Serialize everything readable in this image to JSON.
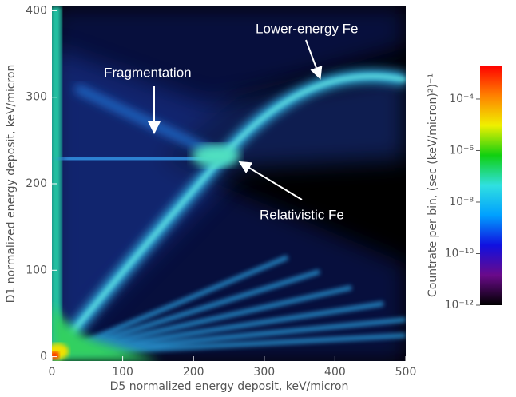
{
  "chart_data": {
    "type": "heatmap",
    "xlabel": "D5 normalized energy deposit, keV/micron",
    "ylabel": "D1 normalized energy deposit, keV/micron",
    "xlim": [
      0,
      500
    ],
    "ylim": [
      -5,
      405
    ],
    "xticks": [
      0,
      100,
      200,
      300,
      400,
      500
    ],
    "yticks": [
      0,
      100,
      200,
      300,
      400
    ],
    "annotations": [
      "Lower-energy Fe",
      "Fragmentation",
      "Relativistic Fe"
    ],
    "colorbar": {
      "label": "Countrate per bin, (sec (keV/micron)²)⁻¹",
      "log": true,
      "lim": [
        1e-12,
        0.002
      ],
      "ticks": [
        {
          "value": 1e-12,
          "label": "10⁻¹²"
        },
        {
          "value": 1e-10,
          "label": "10⁻¹⁰"
        },
        {
          "value": 1e-08,
          "label": "10⁻⁸"
        },
        {
          "value": 1e-06,
          "label": "10⁻⁶"
        },
        {
          "value": 0.0001,
          "label": "10⁻⁴"
        }
      ],
      "colors": [
        "#000000",
        "#6a0a8a",
        "#1010e0",
        "#00a0ff",
        "#30e0e0",
        "#10d010",
        "#f0f000",
        "#ff8000",
        "#ff0000"
      ]
    }
  }
}
